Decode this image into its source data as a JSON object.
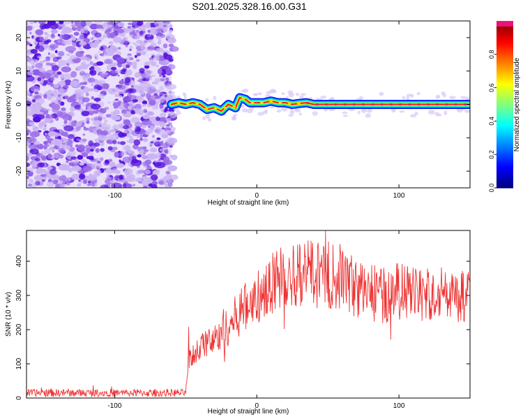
{
  "title": "S201.2025.328.16.00.G31",
  "colors": {
    "line": "#ee3333",
    "axis": "#000000",
    "noise_dark": "#5511dd",
    "noise_light": "#c9b3f2"
  },
  "chart_data": [
    {
      "type": "heatmap",
      "title": "S201.2025.328.16.00.G31",
      "xlabel": "Height of straight line (km)",
      "ylabel": "Frequency (Hz)",
      "xlim": [
        -162,
        150
      ],
      "ylim": [
        -25,
        25
      ],
      "xticks": [
        -100,
        0,
        100
      ],
      "xtick_labels": [
        "-100",
        "0",
        "100"
      ],
      "yticks": [
        -20,
        -10,
        0,
        10,
        20
      ],
      "ytick_labels": [
        "-20",
        "-10",
        "0",
        "10",
        "20"
      ],
      "noise_region_x": [
        -162,
        -60
      ],
      "signal_start_x": -60,
      "signal_track": {
        "x": [
          -60,
          -55,
          -50,
          -45,
          -40,
          -35,
          -30,
          -25,
          -20,
          -15,
          -12,
          -8,
          -5,
          0,
          5,
          10,
          15,
          20,
          25,
          30,
          35,
          40,
          60,
          80,
          100,
          120,
          140,
          150
        ],
        "y": [
          0,
          0.5,
          0,
          0.5,
          0,
          -1.5,
          -1,
          -2,
          0,
          -1,
          2,
          1.5,
          0.5,
          0.5,
          0.5,
          1,
          0.5,
          0.5,
          0,
          0.3,
          0.5,
          0,
          0,
          0,
          0,
          0,
          0,
          0
        ]
      },
      "colorbar": {
        "label": "Normalized spectral amplitude",
        "range": [
          0,
          1
        ],
        "ticks": [
          0.0,
          0.2,
          0.4,
          0.6,
          0.8
        ],
        "tick_labels": [
          "0.0",
          "0.2",
          "0.4",
          "0.6",
          "0.8"
        ]
      }
    },
    {
      "type": "line",
      "xlabel": "Height of straight line (km)",
      "ylabel": "SNR (10 * v/v)",
      "xlim": [
        -162,
        150
      ],
      "ylim": [
        0,
        490
      ],
      "xticks": [
        -100,
        0,
        100
      ],
      "xtick_labels": [
        "-100",
        "0",
        "100"
      ],
      "yticks": [
        0,
        100,
        200,
        300,
        400
      ],
      "ytick_labels": [
        "0",
        "100",
        "200",
        "300",
        "400"
      ],
      "series": [
        {
          "name": "SNR",
          "envelope_x": [
            -162,
            -50,
            -48,
            -40,
            -30,
            -20,
            -10,
            0,
            10,
            20,
            30,
            40,
            50,
            60,
            70,
            80,
            90,
            100,
            110,
            120,
            130,
            140,
            150
          ],
          "envelope_y": [
            15,
            15,
            110,
            150,
            170,
            210,
            260,
            290,
            330,
            360,
            365,
            365,
            350,
            355,
            320,
            310,
            300,
            315,
            300,
            300,
            305,
            295,
            300
          ]
        }
      ]
    }
  ]
}
